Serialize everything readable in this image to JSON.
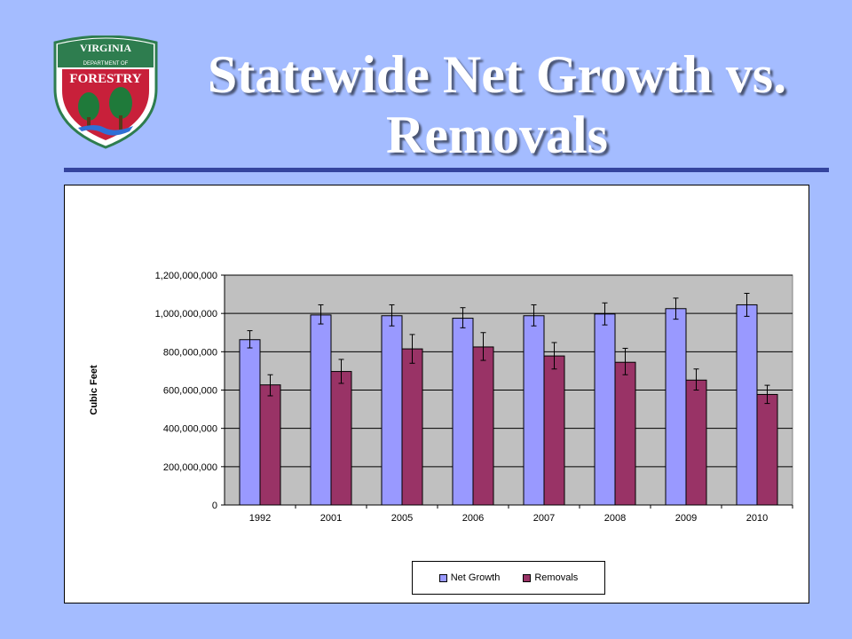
{
  "slide": {
    "title": "Statewide Net Growth vs. Removals",
    "logo": {
      "top_text": "VIRGINIA",
      "sub_text": "DEPARTMENT OF",
      "main_text": "FORESTRY",
      "colors": {
        "border": "#2e7d4f",
        "shield": "#c8203a",
        "tree": "#1f7a3a",
        "water": "#2f6fd6"
      }
    }
  },
  "chart_data": {
    "type": "bar",
    "title": "",
    "xlabel": "",
    "ylabel": "Cubic Feet",
    "categories": [
      "1992",
      "2001",
      "2005",
      "2006",
      "2007",
      "2008",
      "2009",
      "2010"
    ],
    "ylim": [
      0,
      1200000000
    ],
    "yticks": [
      0,
      200000000,
      400000000,
      600000000,
      800000000,
      1000000000,
      1200000000
    ],
    "ytick_labels": [
      "0",
      "200,000,000",
      "400,000,000",
      "600,000,000",
      "800,000,000",
      "1,000,000,000",
      "1,200,000,000"
    ],
    "grid": true,
    "plot_background": "#c0c0c0",
    "legend_position": "bottom",
    "series": [
      {
        "name": "Net Growth",
        "color": "#9999ff",
        "values": [
          863000000,
          992000000,
          988000000,
          975000000,
          988000000,
          997000000,
          1025000000,
          1045000000
        ],
        "error_low": [
          820000000,
          945000000,
          935000000,
          925000000,
          935000000,
          940000000,
          970000000,
          985000000
        ],
        "error_high": [
          910000000,
          1045000000,
          1045000000,
          1030000000,
          1045000000,
          1055000000,
          1080000000,
          1105000000
        ]
      },
      {
        "name": "Removals",
        "color": "#993366",
        "values": [
          627000000,
          697000000,
          815000000,
          825000000,
          778000000,
          745000000,
          652000000,
          577000000
        ],
        "error_low": [
          570000000,
          635000000,
          740000000,
          755000000,
          710000000,
          680000000,
          600000000,
          530000000
        ],
        "error_high": [
          680000000,
          760000000,
          890000000,
          900000000,
          848000000,
          818000000,
          710000000,
          625000000
        ]
      }
    ]
  }
}
